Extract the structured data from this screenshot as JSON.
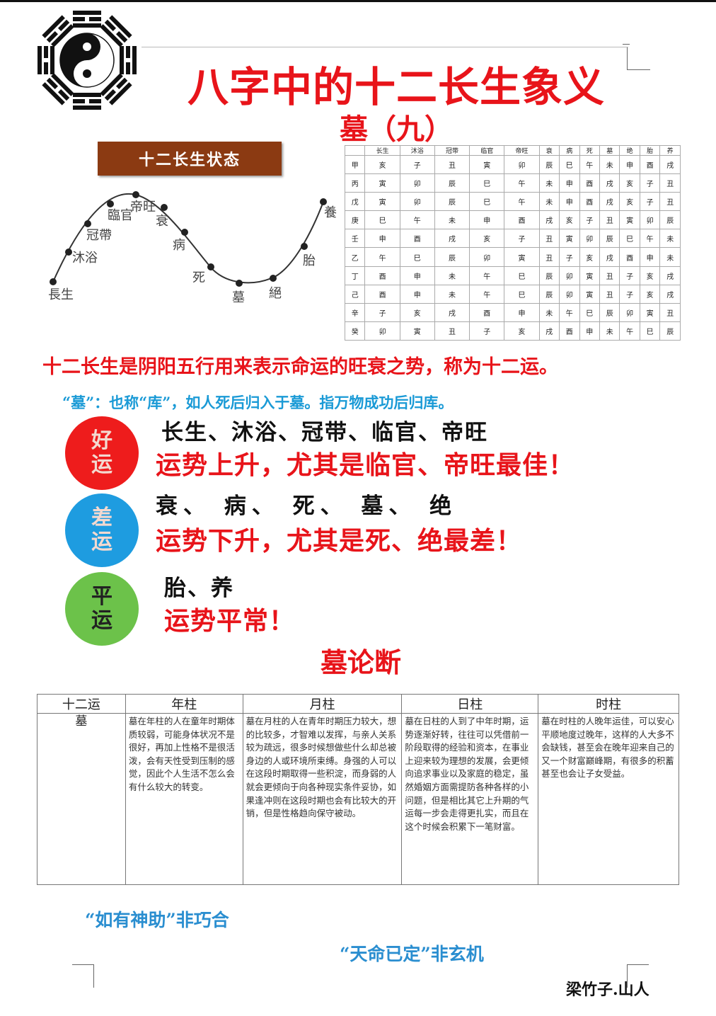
{
  "title": "八字中的十二长生象义",
  "subtitle": "墓（九）",
  "diagram": {
    "banner": "十二长生状态",
    "points": [
      "長生",
      "沐浴",
      "冠帶",
      "臨官",
      "帝旺",
      "衰",
      "病",
      "死",
      "墓",
      "絕",
      "胎",
      "養"
    ]
  },
  "cycle_table": {
    "headers": [
      "",
      "长生",
      "沐浴",
      "冠带",
      "临官",
      "帝旺",
      "衰",
      "病",
      "死",
      "墓",
      "绝",
      "胎",
      "养"
    ],
    "rows": [
      [
        "甲",
        "亥",
        "子",
        "丑",
        "寅",
        "卯",
        "辰",
        "巳",
        "午",
        "未",
        "申",
        "酉",
        "戌"
      ],
      [
        "丙",
        "寅",
        "卯",
        "辰",
        "巳",
        "午",
        "未",
        "申",
        "酉",
        "戌",
        "亥",
        "子",
        "丑"
      ],
      [
        "戊",
        "寅",
        "卯",
        "辰",
        "巳",
        "午",
        "未",
        "申",
        "酉",
        "戌",
        "亥",
        "子",
        "丑"
      ],
      [
        "庚",
        "巳",
        "午",
        "未",
        "申",
        "酉",
        "戌",
        "亥",
        "子",
        "丑",
        "寅",
        "卯",
        "辰"
      ],
      [
        "壬",
        "申",
        "酉",
        "戌",
        "亥",
        "子",
        "丑",
        "寅",
        "卯",
        "辰",
        "巳",
        "午",
        "未"
      ],
      [
        "乙",
        "午",
        "巳",
        "辰",
        "卯",
        "寅",
        "丑",
        "子",
        "亥",
        "戌",
        "酉",
        "申",
        "未"
      ],
      [
        "丁",
        "酉",
        "申",
        "未",
        "午",
        "巳",
        "辰",
        "卯",
        "寅",
        "丑",
        "子",
        "亥",
        "戌"
      ],
      [
        "己",
        "酉",
        "申",
        "未",
        "午",
        "巳",
        "辰",
        "卯",
        "寅",
        "丑",
        "子",
        "亥",
        "戌"
      ],
      [
        "辛",
        "子",
        "亥",
        "戌",
        "酉",
        "申",
        "未",
        "午",
        "巳",
        "辰",
        "卯",
        "寅",
        "丑"
      ],
      [
        "癸",
        "卯",
        "寅",
        "丑",
        "子",
        "亥",
        "戌",
        "酉",
        "申",
        "未",
        "午",
        "巳",
        "辰"
      ]
    ]
  },
  "intro": "十二长生是阴阳五行用来表示命运的旺衰之势，称为十二运。",
  "mu_explain": "“墓”：也称“库”，如人死后归入于墓。指万物成功后归库。",
  "groups": [
    {
      "label": [
        "好",
        "运"
      ],
      "stages": "长生、沐浴、冠带、临官、帝旺",
      "fortune": "运势上升，尤其是临官、帝旺最佳！",
      "color": "#ee1c1c"
    },
    {
      "label": [
        "差",
        "运"
      ],
      "stages": "衰、 病、 死、 墓、 绝",
      "fortune": "运势下升，尤其是死、绝最差！",
      "color": "#1e9ce0"
    },
    {
      "label": [
        "平",
        "运"
      ],
      "stages": "胎、养",
      "fortune": "运势平常！",
      "color": "#6cc24a"
    }
  ],
  "section_title": "墓论断",
  "mu_table": {
    "headers": [
      "十二运",
      "年柱",
      "月柱",
      "日柱",
      "时柱"
    ],
    "row_label": "墓",
    "cells": [
      "墓在年柱的人在童年时期体质较弱，可能身体状况不是很好，再加上性格不是很活泼，会有天性受到压制的感觉，因此个人生活不怎么会有什么较大的转变。",
      "墓在月柱的人在青年时期压力较大，想的比较多，才智难以发挥，与亲人关系较为疏远，很多时候想做些什么却总被身边的人或环境所束缚。身强的人可以在这段时期取得一些积淀，而身弱的人就会更倾向于向各种现实条件妥协，如果逢冲则在这段时期也会有比较大的开销，但是性格趋向保守被动。",
      "墓在日柱的人到了中年时期，运势逐渐好转，往往可以凭借前一阶段取得的经验和资本，在事业上迎来较为理想的发展，会更倾向追求事业以及家庭的稳定，虽然婚姻方面需提防各种各样的小问题，但是相比其它上升期的气运每一步会走得更扎实，而且在这个时候会积累下一笔财富。",
      "墓在时柱的人晚年运佳，可以安心平顺地度过晚年，这样的人大多不会缺钱，甚至会在晚年迎来自己的又一个财富巅峰期，有很多的积蓄甚至也会让子女受益。"
    ]
  },
  "sayings": [
    "“如有神助”非巧合",
    "“天命已定”非玄机"
  ],
  "author": "梁竹子.山人"
}
